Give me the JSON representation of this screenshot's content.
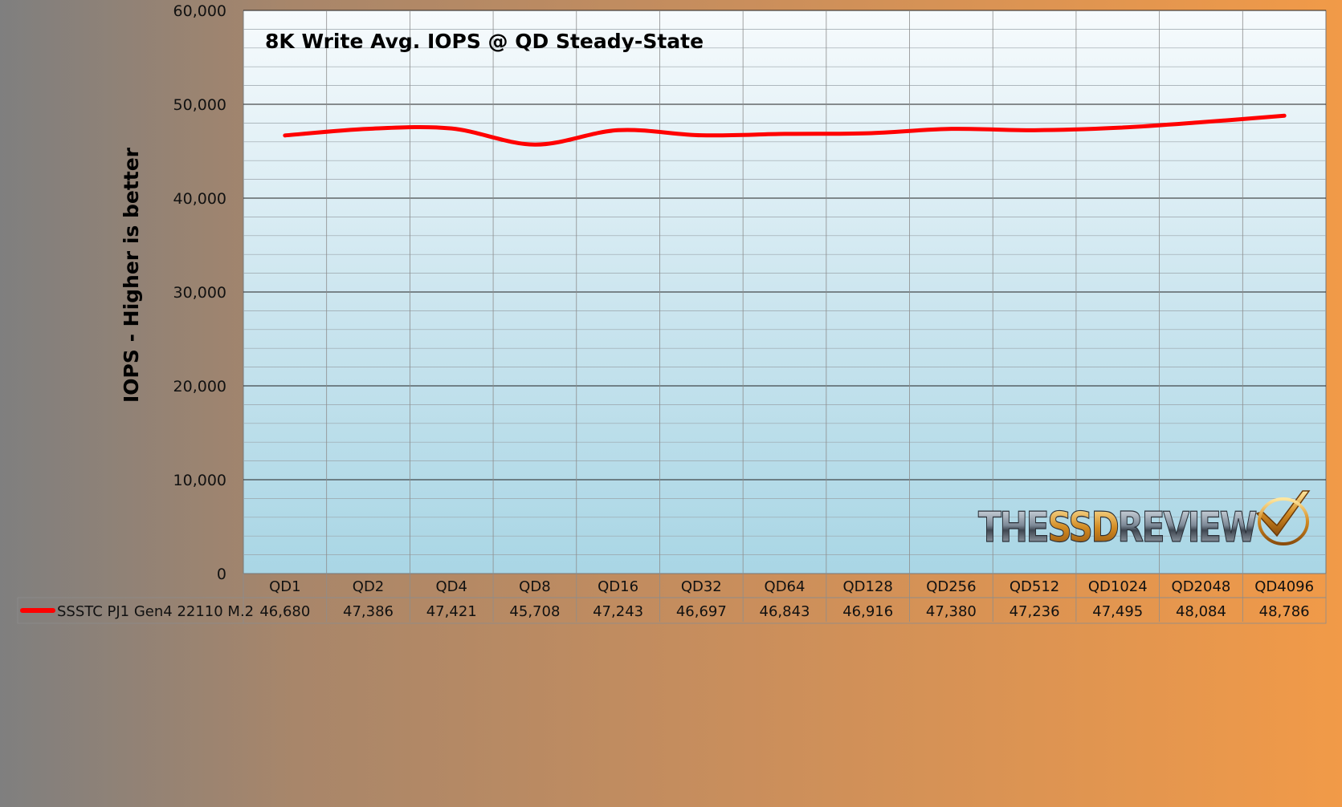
{
  "chart_data": {
    "type": "line",
    "title": "8K Write Avg. IOPS @ QD Steady-State",
    "ylabel": "IOPS - Higher is better",
    "xlabel": "",
    "ylim": [
      0,
      60000
    ],
    "yticks": [
      "0",
      "10,000",
      "20,000",
      "30,000",
      "40,000",
      "50,000",
      "60,000"
    ],
    "ytick_values": [
      0,
      10000,
      20000,
      30000,
      40000,
      50000,
      60000
    ],
    "grid": true,
    "categories": [
      "QD1",
      "QD2",
      "QD4",
      "QD8",
      "QD16",
      "QD32",
      "QD64",
      "QD128",
      "QD256",
      "QD512",
      "QD1024",
      "QD2048",
      "QD4096"
    ],
    "series": [
      {
        "name": "SSSTC PJ1  Gen4 22110 M.2",
        "color": "#ff0000",
        "values": [
          46680,
          47386,
          47421,
          45708,
          47243,
          46697,
          46843,
          46916,
          47380,
          47236,
          47495,
          48084,
          48786
        ],
        "labels": [
          "46,680",
          "47,386",
          "47,421",
          "45,708",
          "47,243",
          "46,697",
          "46,843",
          "46,916",
          "47,380",
          "47,236",
          "47,495",
          "48,084",
          "48,786"
        ]
      }
    ],
    "data_table": true,
    "watermark": "THESSDREVIEW"
  }
}
